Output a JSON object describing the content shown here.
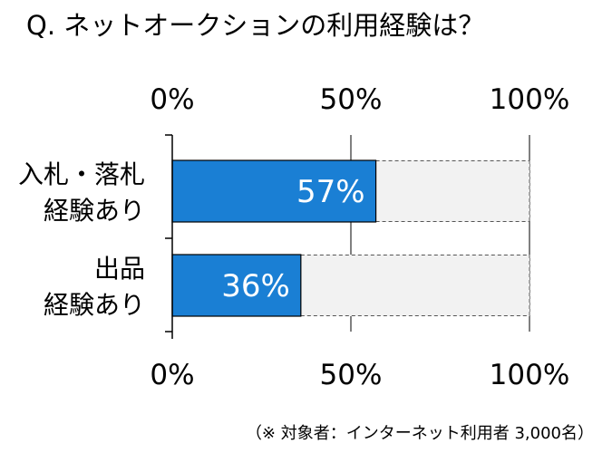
{
  "chart_data": {
    "type": "bar",
    "orientation": "horizontal",
    "stacked_to_100": true,
    "title": "Q. ネットオークションの利用経験は？",
    "categories": [
      [
        "入札・落札",
        "経験あり"
      ],
      [
        "出品",
        "経験あり"
      ]
    ],
    "series": [
      {
        "values": [
          57,
          36
        ],
        "color": "#1a7fd4"
      }
    ],
    "data_labels": [
      "57%",
      "36%"
    ],
    "xlim": [
      0,
      100
    ],
    "x_ticks": [
      "0%",
      "50%",
      "100%"
    ],
    "remainder_color": "#f2f2f2",
    "grid": true,
    "legend": "none",
    "footnote": "（※ 対象者：インターネット利用者 3,000名）"
  }
}
